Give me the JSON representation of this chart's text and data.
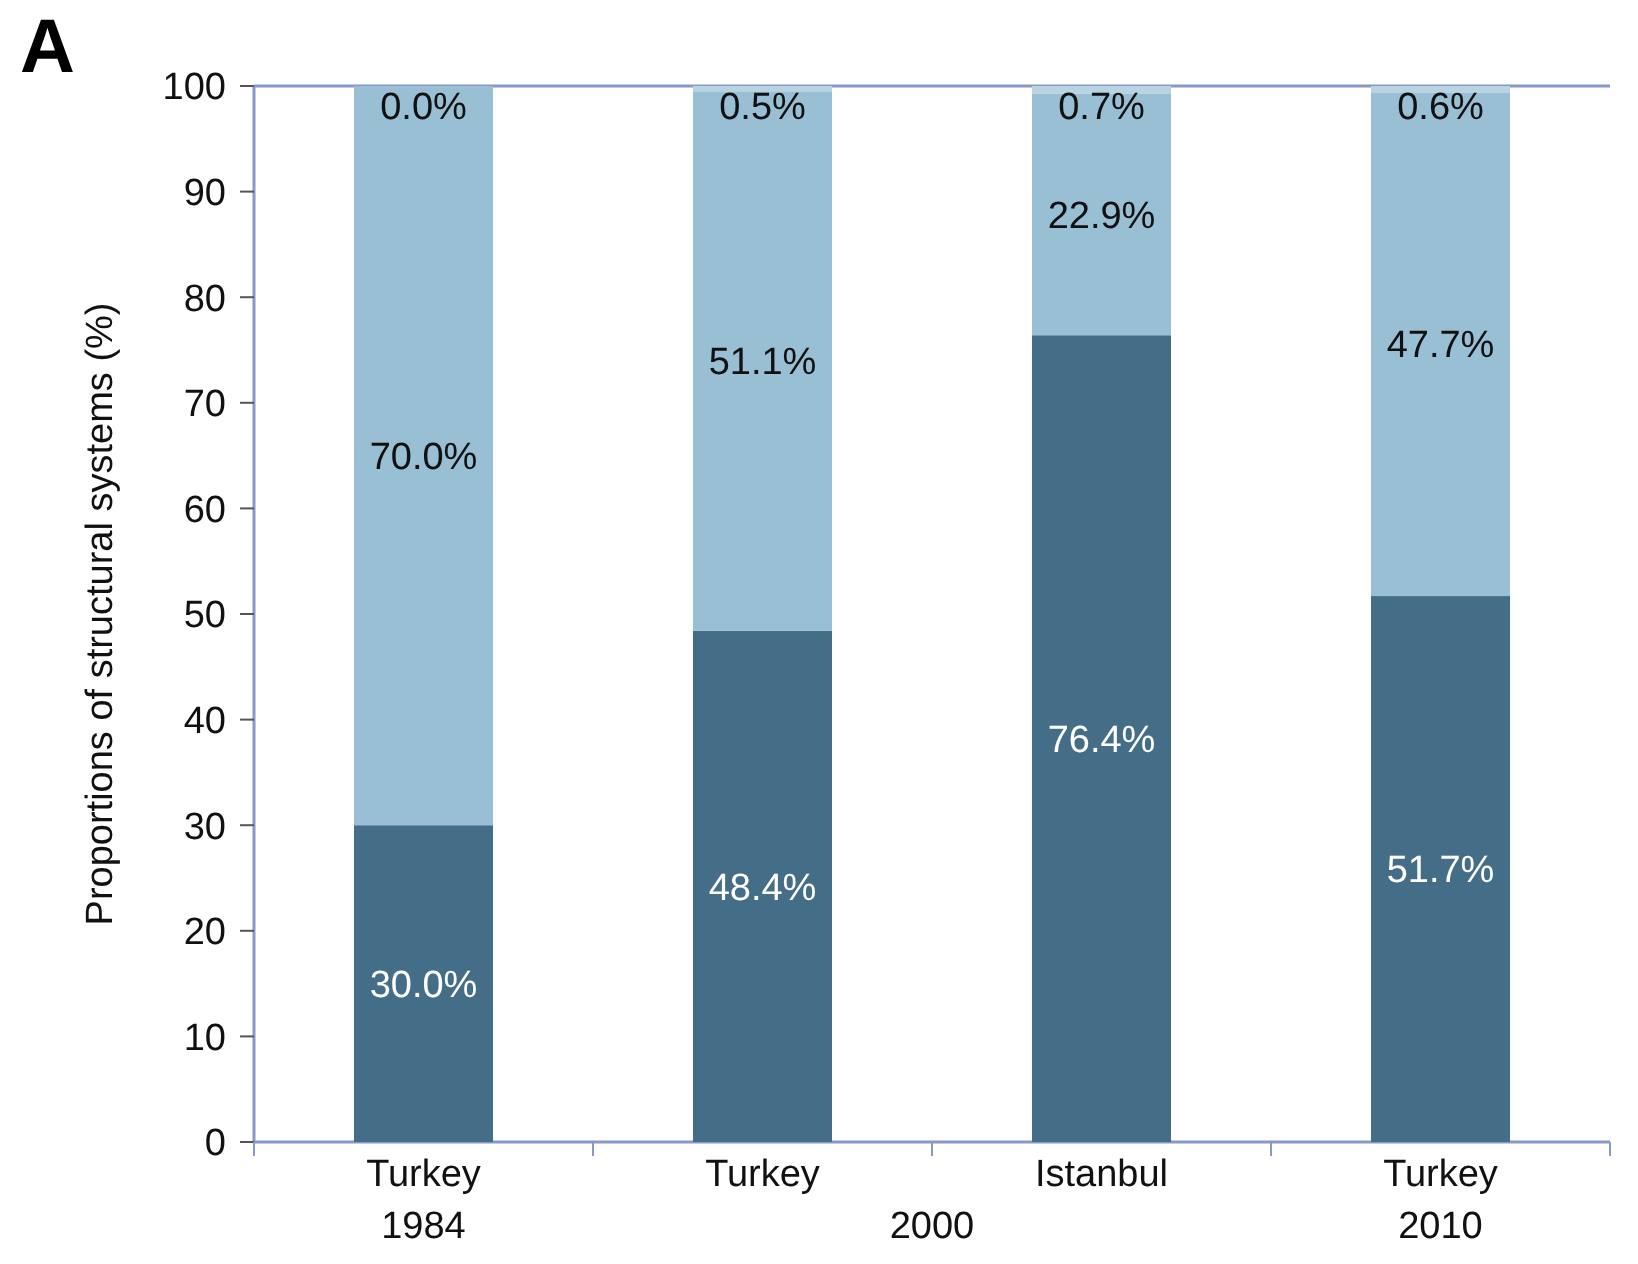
{
  "chart_data": {
    "type": "bar",
    "stacked": true,
    "categories": [
      "Turkey\n1984",
      "Turkey",
      "Istanbul",
      "Turkey\n2010"
    ],
    "series": [
      {
        "color": "#446e88",
        "values": [
          30.0,
          48.4,
          76.4,
          51.7
        ],
        "value_labels": [
          "30.0%",
          "48.4%",
          "76.4%",
          "51.7%"
        ]
      },
      {
        "color": "#98bfd4",
        "values": [
          70.0,
          51.1,
          22.9,
          47.7
        ],
        "value_labels": [
          "70.0%",
          "51.1%",
          "22.9%",
          "47.7%"
        ]
      },
      {
        "color": "#b8d3e2",
        "values": [
          0.0,
          0.5,
          0.7,
          0.6
        ],
        "value_labels": [
          "0.0%",
          "0.5%",
          "0.7%",
          "0.6%"
        ]
      }
    ],
    "ylabel": "Proportions of structural systems (%)",
    "ylim": [
      0,
      100
    ],
    "yticks": [
      0,
      10,
      20,
      30,
      40,
      50,
      60,
      70,
      80,
      90,
      100
    ],
    "grid": false,
    "annotations": [
      "A",
      "2000"
    ]
  }
}
